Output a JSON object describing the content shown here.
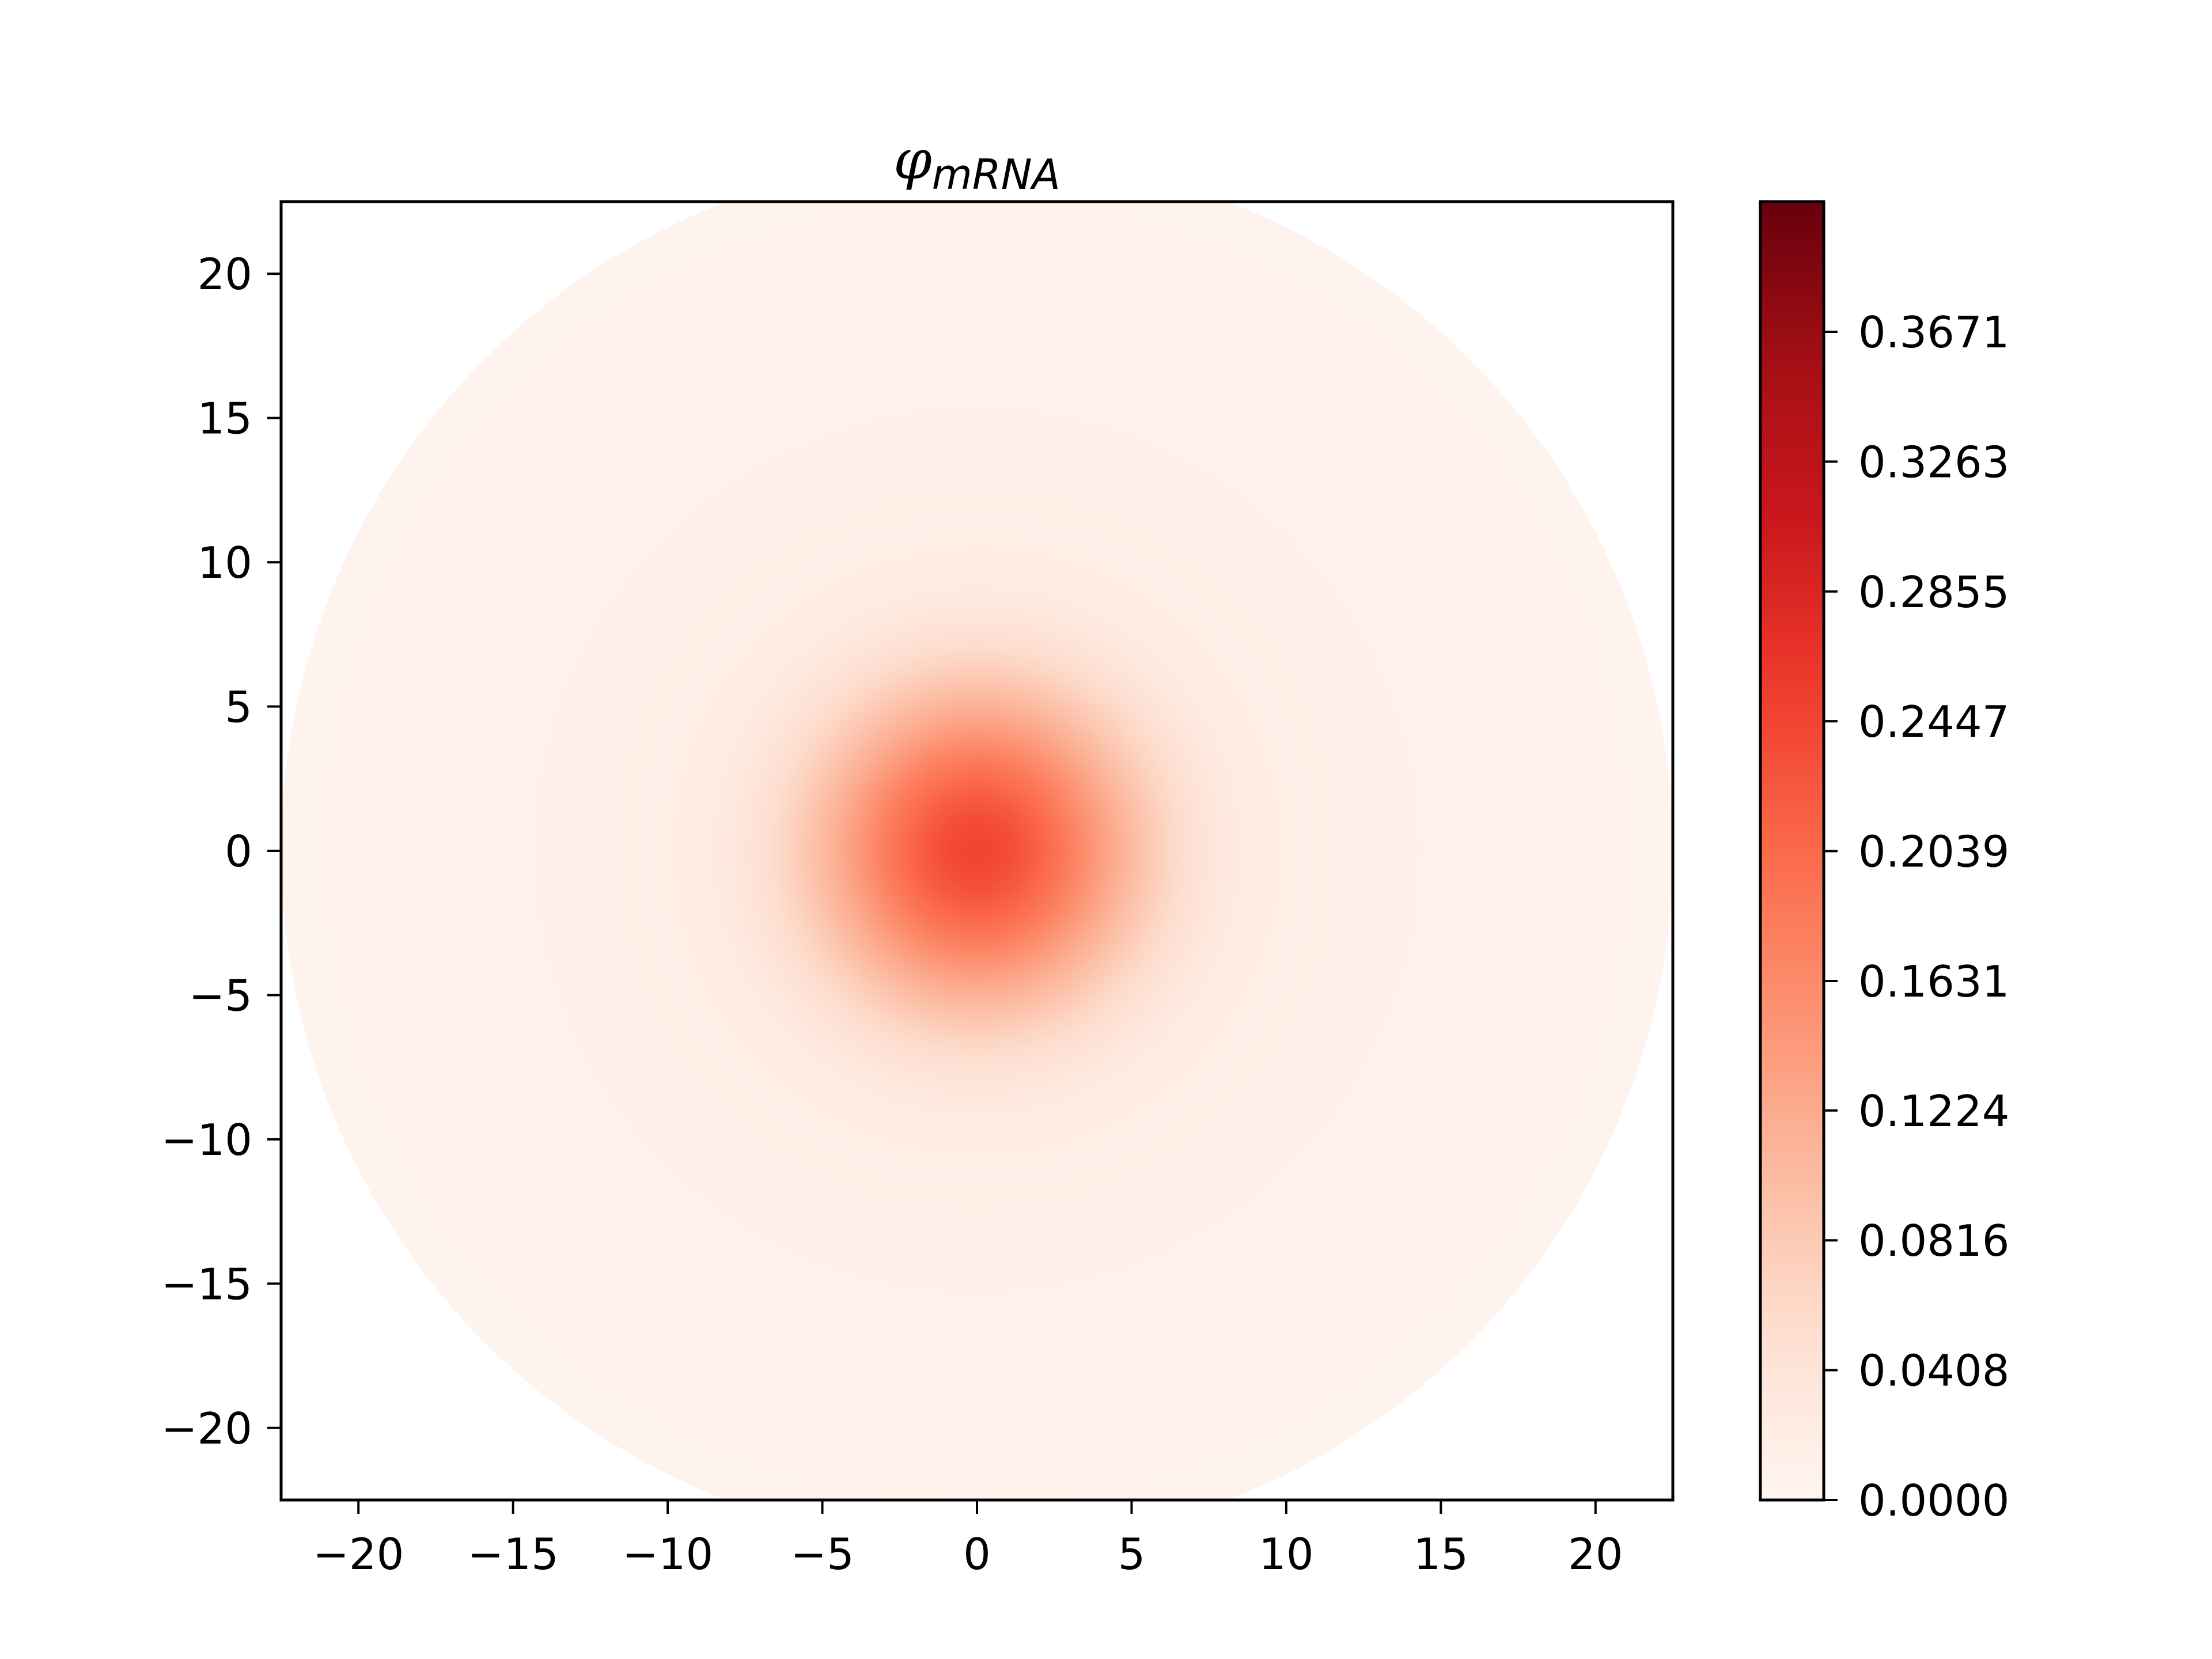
{
  "chart_data": {
    "type": "heatmap",
    "title": {
      "symbol": "φ",
      "subscript": "mRNA"
    },
    "xlabel": "",
    "ylabel": "",
    "xlim": [
      -22.5,
      22.5
    ],
    "ylim": [
      -22.5,
      22.5
    ],
    "x_ticks": [
      -20,
      -15,
      -10,
      -5,
      0,
      5,
      10,
      15,
      20
    ],
    "x_tick_labels": [
      "−20",
      "−15",
      "−10",
      "−5",
      "0",
      "5",
      "10",
      "15",
      "20"
    ],
    "y_ticks": [
      20,
      15,
      10,
      5,
      0,
      -5,
      -10,
      -15,
      -20
    ],
    "y_tick_labels": [
      "20",
      "15",
      "10",
      "5",
      "0",
      "−5",
      "−10",
      "−15",
      "−20"
    ],
    "domain": {
      "shape": "disk",
      "center": [
        0,
        0
      ],
      "radius": 22.5
    },
    "field": {
      "description_of_peak": "radially symmetric maximum at the origin",
      "peak_center": [
        0,
        0
      ],
      "peak_value": 0.245,
      "core_width_sigma": 3.6,
      "background_value": 0.004,
      "halo_value": 0.012,
      "halo_width_sigma": 11
    },
    "colormap": "Reds",
    "colorbar": {
      "vmin": 0.0,
      "vmax": 0.408,
      "ticks": [
        0.0,
        0.0408,
        0.0816,
        0.1224,
        0.1631,
        0.2039,
        0.2447,
        0.2855,
        0.3263,
        0.3671
      ],
      "tick_labels": [
        "0.0000",
        "0.0408",
        "0.0816",
        "0.1224",
        "0.1631",
        "0.2039",
        "0.2447",
        "0.2855",
        "0.3263",
        "0.3671"
      ],
      "colors": [
        "#fff5f0",
        "#fee0d2",
        "#fcbba1",
        "#fc9272",
        "#fb6a4a",
        "#ef3b2c",
        "#cb181d",
        "#a50f15",
        "#67000d"
      ]
    }
  }
}
